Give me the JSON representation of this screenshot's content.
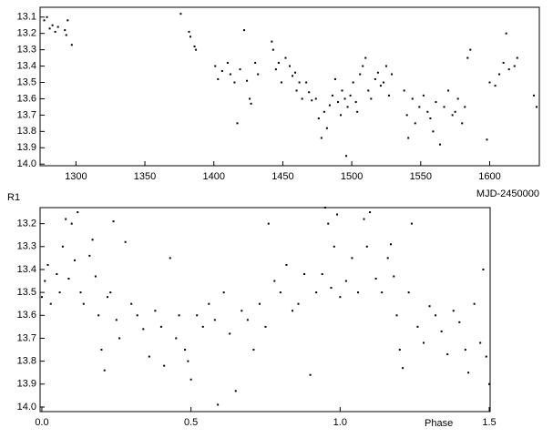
{
  "chart_data": [
    {
      "type": "scatter",
      "x_label": "MJD-2450000",
      "xlim": [
        1274,
        1636
      ],
      "ylim": [
        13.04,
        14.01
      ],
      "y_inverted": true,
      "color": "#000000",
      "xticks": [
        1300,
        1350,
        1400,
        1450,
        1500,
        1550,
        1600
      ],
      "yticks": [
        13.1,
        13.2,
        13.3,
        13.4,
        13.5,
        13.6,
        13.7,
        13.8,
        13.9,
        {
          "value": 14,
          "label": "14.0"
        }
      ],
      "x": [
        1277,
        1279,
        1281,
        1283,
        1285,
        1287,
        1292,
        1293,
        1294,
        1297,
        1376,
        1382,
        1383,
        1386,
        1387,
        1401,
        1403,
        1406,
        1410,
        1412,
        1415,
        1417,
        1419,
        1422,
        1424,
        1426,
        1427,
        1430,
        1432,
        1442,
        1443,
        1445,
        1447,
        1449,
        1452,
        1455,
        1457,
        1459,
        1460,
        1462,
        1464,
        1467,
        1469,
        1471,
        1474,
        1476,
        1478,
        1480,
        1482,
        1484,
        1486,
        1488,
        1490,
        1492,
        1493,
        1495,
        1496,
        1497,
        1499,
        1501,
        1503,
        1504,
        1506,
        1508,
        1510,
        1512,
        1514,
        1517,
        1519,
        1521,
        1523,
        1525,
        1527,
        1529,
        1538,
        1540,
        1541,
        1544,
        1546,
        1549,
        1552,
        1555,
        1557,
        1559,
        1561,
        1564,
        1567,
        1570,
        1573,
        1575,
        1577,
        1580,
        1582,
        1584,
        1586,
        1598,
        1600,
        1604,
        1607,
        1610,
        1612,
        1614,
        1618,
        1620,
        1632,
        1634
      ],
      "y": [
        13.12,
        13.1,
        13.17,
        13.15,
        13.19,
        13.16,
        13.18,
        13.21,
        13.12,
        13.27,
        13.08,
        13.19,
        13.22,
        13.28,
        13.3,
        13.4,
        13.48,
        13.43,
        13.38,
        13.45,
        13.5,
        13.75,
        13.42,
        13.18,
        13.49,
        13.6,
        13.63,
        13.38,
        13.45,
        13.25,
        13.3,
        13.42,
        13.38,
        13.5,
        13.35,
        13.4,
        13.46,
        13.44,
        13.55,
        13.5,
        13.6,
        13.5,
        13.56,
        13.61,
        13.6,
        13.72,
        13.84,
        13.68,
        13.78,
        13.64,
        13.58,
        13.48,
        13.62,
        13.7,
        13.55,
        13.6,
        13.95,
        13.65,
        13.58,
        13.5,
        13.62,
        13.68,
        13.45,
        13.4,
        13.35,
        13.55,
        13.6,
        13.48,
        13.44,
        13.52,
        13.5,
        13.4,
        13.58,
        13.45,
        13.55,
        13.7,
        13.84,
        13.6,
        13.75,
        13.65,
        13.58,
        13.68,
        13.72,
        13.8,
        13.62,
        13.88,
        13.65,
        13.55,
        13.7,
        13.68,
        13.6,
        13.75,
        13.65,
        13.35,
        13.3,
        13.85,
        13.5,
        13.52,
        13.45,
        13.38,
        13.2,
        13.42,
        13.4,
        13.35,
        13.58,
        13.65
      ]
    },
    {
      "type": "scatter",
      "x_label": "Phase",
      "y_label": "R1",
      "xlim": [
        -0.006,
        1.503
      ],
      "ylim": [
        13.13,
        14.02
      ],
      "y_inverted": true,
      "color": "#000000",
      "xticks": [
        {
          "value": 0,
          "label": "0.0"
        },
        0.5,
        {
          "value": 1,
          "label": "1.0"
        },
        1.5
      ],
      "yticks": [
        13.2,
        13.3,
        13.4,
        13.5,
        13.6,
        13.7,
        13.8,
        13.9,
        {
          "value": 14,
          "label": "14.0"
        }
      ],
      "x": [
        0.0,
        0.01,
        0.02,
        0.03,
        0.05,
        0.06,
        0.07,
        0.08,
        0.09,
        0.1,
        0.11,
        0.12,
        0.13,
        0.14,
        0.16,
        0.17,
        0.18,
        0.19,
        0.2,
        0.21,
        0.22,
        0.23,
        0.24,
        0.25,
        0.26,
        0.28,
        0.3,
        0.32,
        0.34,
        0.36,
        0.38,
        0.4,
        0.41,
        0.43,
        0.45,
        0.46,
        0.48,
        0.49,
        0.5,
        0.52,
        0.54,
        0.56,
        0.58,
        0.59,
        0.61,
        0.63,
        0.65,
        0.67,
        0.69,
        0.71,
        0.73,
        0.75,
        0.76,
        0.78,
        0.8,
        0.82,
        0.84,
        0.86,
        0.88,
        0.9,
        0.92,
        0.94,
        0.95,
        0.96,
        0.97,
        0.98,
        0.99,
        1.0,
        1.02,
        1.04,
        1.06,
        1.08,
        1.09,
        1.1,
        1.12,
        1.14,
        1.16,
        1.17,
        1.18,
        1.19,
        1.2,
        1.21,
        1.23,
        1.24,
        1.26,
        1.28,
        1.3,
        1.32,
        1.34,
        1.36,
        1.38,
        1.4,
        1.42,
        1.43,
        1.45,
        1.47,
        1.48,
        1.49,
        1.5
      ],
      "y": [
        13.52,
        13.45,
        13.38,
        13.55,
        13.42,
        13.5,
        13.3,
        13.18,
        13.44,
        13.2,
        13.36,
        13.15,
        13.5,
        13.55,
        13.34,
        13.27,
        13.43,
        13.6,
        13.75,
        13.84,
        13.52,
        13.5,
        13.19,
        13.62,
        13.7,
        13.28,
        13.55,
        13.6,
        13.66,
        13.78,
        13.58,
        13.65,
        13.82,
        13.35,
        13.7,
        13.6,
        13.75,
        13.8,
        13.88,
        13.6,
        13.65,
        13.55,
        13.62,
        13.99,
        13.5,
        13.68,
        13.93,
        13.58,
        13.62,
        13.75,
        13.55,
        13.65,
        13.2,
        13.45,
        13.5,
        13.38,
        13.58,
        13.55,
        13.42,
        13.86,
        13.5,
        13.42,
        13.13,
        13.2,
        13.48,
        13.3,
        13.16,
        13.52,
        13.45,
        13.35,
        13.5,
        13.18,
        13.3,
        13.15,
        13.44,
        13.5,
        13.35,
        13.29,
        13.43,
        13.6,
        13.75,
        13.83,
        13.5,
        13.2,
        13.65,
        13.72,
        13.56,
        13.6,
        13.67,
        13.77,
        13.58,
        13.63,
        13.75,
        13.85,
        13.55,
        13.72,
        13.4,
        13.78,
        13.9
      ]
    }
  ]
}
